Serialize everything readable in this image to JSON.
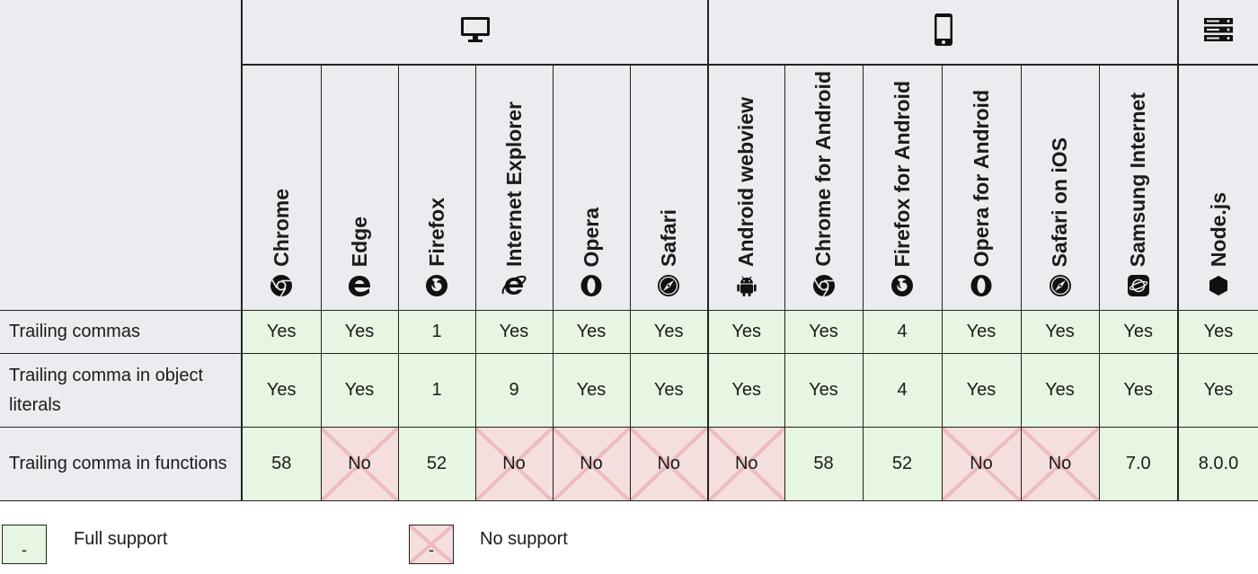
{
  "platforms": [
    {
      "name": "desktop",
      "icon": "desktop-icon"
    },
    {
      "name": "mobile",
      "icon": "mobile-icon"
    },
    {
      "name": "server",
      "icon": "server-icon"
    }
  ],
  "browsers": [
    {
      "label": "Chrome",
      "icon": "chrome-icon"
    },
    {
      "label": "Edge",
      "icon": "edge-icon"
    },
    {
      "label": "Firefox",
      "icon": "firefox-icon"
    },
    {
      "label": "Internet Explorer",
      "icon": "internet-explorer-icon"
    },
    {
      "label": "Opera",
      "icon": "opera-icon"
    },
    {
      "label": "Safari",
      "icon": "safari-icon"
    },
    {
      "label": "Android webview",
      "icon": "android-icon"
    },
    {
      "label": "Chrome for Android",
      "icon": "chrome-icon"
    },
    {
      "label": "Firefox for Android",
      "icon": "firefox-icon"
    },
    {
      "label": "Opera for Android",
      "icon": "opera-icon"
    },
    {
      "label": "Safari on iOS",
      "icon": "safari-icon"
    },
    {
      "label": "Samsung Internet",
      "icon": "samsung-internet-icon"
    },
    {
      "label": "Node.js",
      "icon": "nodejs-icon"
    }
  ],
  "rows": [
    {
      "feature": "Trailing commas",
      "cells": [
        {
          "v": "Yes",
          "s": "yes"
        },
        {
          "v": "Yes",
          "s": "yes"
        },
        {
          "v": "1",
          "s": "yes"
        },
        {
          "v": "Yes",
          "s": "yes"
        },
        {
          "v": "Yes",
          "s": "yes"
        },
        {
          "v": "Yes",
          "s": "yes"
        },
        {
          "v": "Yes",
          "s": "yes"
        },
        {
          "v": "Yes",
          "s": "yes"
        },
        {
          "v": "4",
          "s": "yes"
        },
        {
          "v": "Yes",
          "s": "yes"
        },
        {
          "v": "Yes",
          "s": "yes"
        },
        {
          "v": "Yes",
          "s": "yes"
        },
        {
          "v": "Yes",
          "s": "yes"
        }
      ]
    },
    {
      "feature": "Trailing comma in object literals",
      "cells": [
        {
          "v": "Yes",
          "s": "yes"
        },
        {
          "v": "Yes",
          "s": "yes"
        },
        {
          "v": "1",
          "s": "yes"
        },
        {
          "v": "9",
          "s": "yes"
        },
        {
          "v": "Yes",
          "s": "yes"
        },
        {
          "v": "Yes",
          "s": "yes"
        },
        {
          "v": "Yes",
          "s": "yes"
        },
        {
          "v": "Yes",
          "s": "yes"
        },
        {
          "v": "4",
          "s": "yes"
        },
        {
          "v": "Yes",
          "s": "yes"
        },
        {
          "v": "Yes",
          "s": "yes"
        },
        {
          "v": "Yes",
          "s": "yes"
        },
        {
          "v": "Yes",
          "s": "yes"
        }
      ]
    },
    {
      "feature": "Trailing comma in functions",
      "cells": [
        {
          "v": "58",
          "s": "yes"
        },
        {
          "v": "No",
          "s": "no"
        },
        {
          "v": "52",
          "s": "yes"
        },
        {
          "v": "No",
          "s": "no"
        },
        {
          "v": "No",
          "s": "no"
        },
        {
          "v": "No",
          "s": "no"
        },
        {
          "v": "No",
          "s": "no"
        },
        {
          "v": "58",
          "s": "yes"
        },
        {
          "v": "52",
          "s": "yes"
        },
        {
          "v": "No",
          "s": "no"
        },
        {
          "v": "No",
          "s": "no"
        },
        {
          "v": "7.0",
          "s": "yes"
        },
        {
          "v": "8.0.0",
          "s": "yes"
        }
      ]
    }
  ],
  "legend": [
    {
      "box": "-",
      "label": "Full support",
      "status": "yes"
    },
    {
      "box": "-",
      "label": "No support",
      "status": "no"
    }
  ],
  "colors": {
    "supported": "#e6f6e2",
    "unsupported": "#f4dede",
    "header": "#eaecef"
  }
}
